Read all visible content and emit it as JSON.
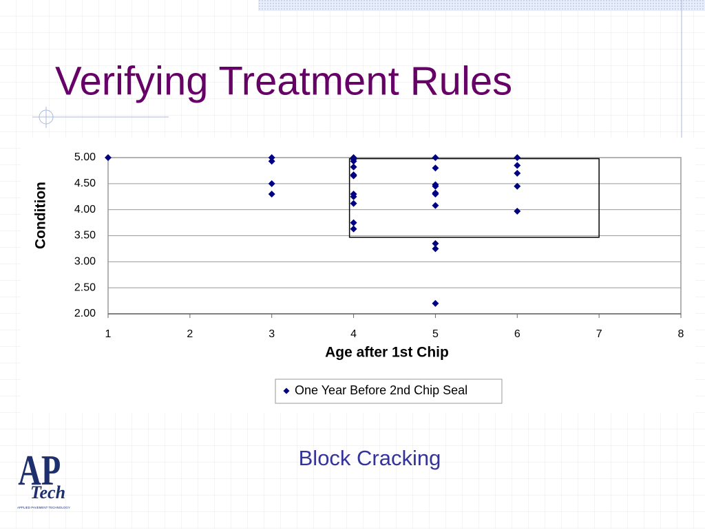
{
  "slide": {
    "title": "Verifying Treatment Rules",
    "caption": "Block Cracking",
    "logo": {
      "mark": "AP",
      "script": "Tech",
      "name": "APPLIED PAVEMENT TECHNOLOGY"
    }
  },
  "chart_data": {
    "type": "scatter",
    "xlabel": "Age after 1st Chip",
    "ylabel": "Condition",
    "xlim": [
      1,
      8
    ],
    "xticks": [
      1,
      2,
      3,
      4,
      5,
      6,
      7,
      8
    ],
    "ylim": [
      2,
      5
    ],
    "yticks": [
      {
        "value": 2,
        "label": "2.00"
      },
      {
        "value": 2.5,
        "label": "2.50"
      },
      {
        "value": 3,
        "label": "3.00"
      },
      {
        "value": 3.5,
        "label": "3.50"
      },
      {
        "value": 4,
        "label": "4.00"
      },
      {
        "value": 4.5,
        "label": "4.50"
      },
      {
        "value": 5,
        "label": "5.00"
      }
    ],
    "grid": true,
    "highlight_box": {
      "x": [
        3.95,
        7
      ],
      "y": [
        3.47,
        4.98
      ]
    },
    "series": [
      {
        "name": "One Year Before 2nd Chip Seal",
        "color": "#000080",
        "x": [
          1,
          3,
          3,
          3,
          3,
          4,
          4,
          4,
          4,
          4,
          4,
          4,
          4,
          4,
          4,
          4,
          5,
          5,
          5,
          5,
          5,
          5,
          5,
          5,
          5,
          5,
          6,
          6,
          6,
          6,
          6
        ],
        "values": [
          5,
          5,
          4.93,
          4.5,
          4.3,
          5,
          4.97,
          4.93,
          4.82,
          4.67,
          4.65,
          4.3,
          4.25,
          4.12,
          3.75,
          3.63,
          5,
          4.8,
          4.48,
          4.45,
          4.32,
          4.3,
          4.08,
          3.35,
          3.25,
          2.2,
          5,
          4.85,
          4.7,
          4.45,
          3.97
        ]
      }
    ]
  }
}
